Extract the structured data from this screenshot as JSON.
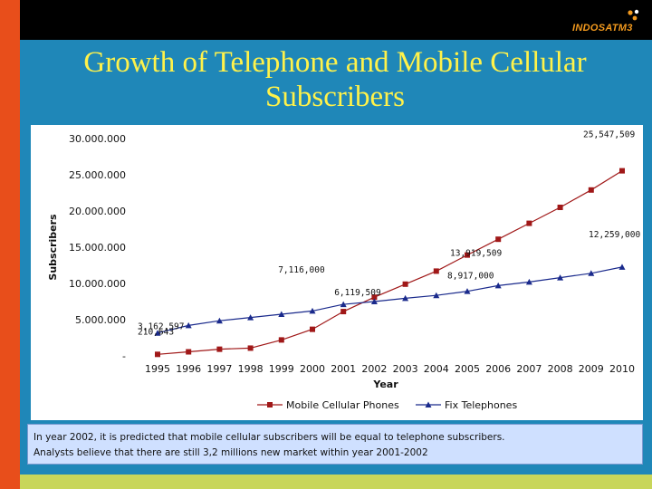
{
  "logo": {
    "text": "INDOSATM3"
  },
  "title_line1": "Growth of Telephone and Mobile Cellular",
  "title_line2": "Subscribers",
  "note": {
    "line1": "In year 2002, it is predicted that mobile cellular subscribers will be equal to telephone subscribers.",
    "line2": "Analysts believe that there are still 3,2 millions new market within year 2001-2002"
  },
  "colors": {
    "mobile": "#a01818",
    "fix": "#1a2a8c",
    "title": "#fff24a",
    "background": "#1f87b8"
  },
  "chart_data": {
    "type": "line",
    "title": "",
    "xlabel": "Year",
    "ylabel": "Subscribers",
    "ylim": [
      0,
      30000000
    ],
    "yticks": [
      0,
      5000000,
      10000000,
      15000000,
      20000000,
      25000000,
      30000000
    ],
    "ytick_labels": [
      "-",
      "5.000.000",
      "10.000.000",
      "15.000.000",
      "20.000.000",
      "25.000.000",
      "30.000.000"
    ],
    "x": [
      1995,
      1996,
      1997,
      1998,
      1999,
      2000,
      2001,
      2002,
      2003,
      2004,
      2005,
      2006,
      2007,
      2008,
      2009,
      2010
    ],
    "series": [
      {
        "name": "Mobile Cellular Phones",
        "marker": "square",
        "color": "#a01818",
        "values": [
          210643,
          560000,
          920000,
          1070000,
          2200000,
          3670000,
          6119509,
          8100000,
          9900000,
          11700000,
          13919509,
          16100000,
          18300000,
          20500000,
          22900000,
          25547509
        ]
      },
      {
        "name": "Fix Telephones",
        "marker": "triangle",
        "color": "#1a2a8c",
        "values": [
          3162597,
          4200000,
          4850000,
          5300000,
          5750000,
          6200000,
          7116000,
          7500000,
          7950000,
          8350000,
          8917000,
          9700000,
          10200000,
          10800000,
          11400000,
          12259000
        ]
      }
    ],
    "annotations": [
      {
        "text": "210,643",
        "series": 0,
        "index": 0
      },
      {
        "text": "3,162,597",
        "series": 1,
        "index": 0
      },
      {
        "text": "7,116,000",
        "series": 1,
        "index": 6
      },
      {
        "text": "6,119,509",
        "series": 0,
        "index": 6
      },
      {
        "text": "13,919,509",
        "series": 0,
        "index": 10
      },
      {
        "text": "8,917,000",
        "series": 1,
        "index": 10
      },
      {
        "text": "25,547,509",
        "series": 0,
        "index": 15
      },
      {
        "text": "12,259,000",
        "series": 1,
        "index": 15
      }
    ],
    "legend": "bottom",
    "grid": false
  }
}
